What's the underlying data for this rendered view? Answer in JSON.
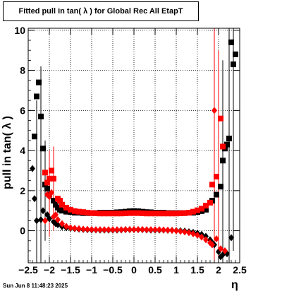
{
  "title": "Fitted pull in tan( λ ) for Global Rec All EtapT",
  "timestamp": "Sun Jun  8 11:48:23 2025",
  "chart_data": {
    "type": "scatter",
    "title": "Fitted pull in tan( λ ) for Global Rec All EtapT",
    "xlabel": "η",
    "ylabel": "pull in tan( λ )",
    "xlim": [
      -2.5,
      2.5
    ],
    "ylim": [
      -1.6,
      10.1
    ],
    "xticks": [
      -2.5,
      -2,
      -1.5,
      -1,
      -0.5,
      0,
      0.5,
      1,
      1.5,
      2,
      2.5
    ],
    "xtick_labels": [
      "−2.5",
      "−2",
      "−1.5",
      "−1",
      "−0.5",
      "0",
      "0.5",
      "1",
      "1.5",
      "2",
      "2.5"
    ],
    "yticks": [
      0,
      2,
      4,
      6,
      8,
      10
    ],
    "ytick_labels": [
      "0",
      "2",
      "4",
      "6",
      "8",
      "10"
    ],
    "grid": true,
    "series": [
      {
        "color": "#000000",
        "marker": "square",
        "points": [
          [
            -2.35,
            4.7
          ],
          [
            -2.3,
            6.7
          ],
          [
            -2.25,
            7.4
          ],
          [
            -2.2,
            5.7
          ],
          [
            -2.15,
            4.1
          ],
          [
            -2.1,
            2.3
          ],
          [
            -2.05,
            2.1
          ],
          [
            -2.0,
            1.8
          ],
          [
            -1.9,
            1.5
          ],
          [
            -1.85,
            1.3
          ],
          [
            -1.8,
            1.15
          ],
          [
            -1.75,
            1.05
          ],
          [
            -1.7,
            1.0
          ],
          [
            -1.6,
            0.95
          ],
          [
            -1.5,
            0.93
          ],
          [
            -1.4,
            0.9
          ],
          [
            -1.3,
            0.9
          ],
          [
            -1.2,
            0.88
          ],
          [
            -1.1,
            0.88
          ],
          [
            -1.0,
            0.88
          ],
          [
            -0.9,
            0.88
          ],
          [
            -0.8,
            0.9
          ],
          [
            -0.7,
            0.9
          ],
          [
            -0.6,
            0.9
          ],
          [
            -0.5,
            0.9
          ],
          [
            -0.4,
            0.92
          ],
          [
            -0.3,
            0.93
          ],
          [
            -0.2,
            0.95
          ],
          [
            -0.1,
            0.97
          ],
          [
            0.0,
            0.98
          ],
          [
            0.1,
            0.97
          ],
          [
            0.2,
            0.95
          ],
          [
            0.3,
            0.93
          ],
          [
            0.4,
            0.92
          ],
          [
            0.5,
            0.9
          ],
          [
            0.6,
            0.9
          ],
          [
            0.7,
            0.9
          ],
          [
            0.8,
            0.88
          ],
          [
            0.9,
            0.88
          ],
          [
            1.0,
            0.88
          ],
          [
            1.1,
            0.88
          ],
          [
            1.2,
            0.88
          ],
          [
            1.3,
            0.9
          ],
          [
            1.4,
            0.9
          ],
          [
            1.5,
            0.93
          ],
          [
            1.6,
            0.98
          ],
          [
            1.7,
            1.05
          ],
          [
            1.85,
            1.5
          ],
          [
            1.95,
            1.8
          ],
          [
            2.05,
            2.2
          ],
          [
            2.1,
            3.5
          ],
          [
            2.15,
            4.1
          ],
          [
            2.2,
            4.3
          ],
          [
            2.25,
            4.6
          ],
          [
            2.3,
            9.4
          ],
          [
            2.35,
            8.3
          ],
          [
            2.4,
            8.8
          ]
        ]
      },
      {
        "color": "#000000",
        "marker": "diamond",
        "points": [
          [
            -2.4,
            3.1
          ],
          [
            -2.35,
            1.6
          ],
          [
            -2.3,
            0.5
          ],
          [
            -2.2,
            0.55
          ],
          [
            -2.15,
            1.0
          ],
          [
            -2.05,
            0.8
          ],
          [
            -2.0,
            0.6
          ],
          [
            -1.9,
            0.45
          ],
          [
            -1.85,
            0.35
          ],
          [
            -1.8,
            0.3
          ],
          [
            -1.7,
            0.2
          ],
          [
            -1.6,
            0.15
          ],
          [
            -1.5,
            0.12
          ],
          [
            -1.4,
            0.1
          ],
          [
            -1.3,
            0.08
          ],
          [
            -1.2,
            0.06
          ],
          [
            -1.1,
            0.05
          ],
          [
            -1.0,
            0.04
          ],
          [
            -0.9,
            0.04
          ],
          [
            -0.8,
            0.03
          ],
          [
            -0.7,
            0.03
          ],
          [
            -0.6,
            0.03
          ],
          [
            -0.5,
            0.03
          ],
          [
            -0.4,
            0.03
          ],
          [
            -0.3,
            0.04
          ],
          [
            -0.2,
            0.05
          ],
          [
            -0.1,
            0.05
          ],
          [
            0.0,
            0.05
          ],
          [
            0.1,
            0.05
          ],
          [
            0.2,
            0.05
          ],
          [
            0.3,
            0.04
          ],
          [
            0.4,
            0.03
          ],
          [
            0.5,
            0.03
          ],
          [
            0.6,
            0.03
          ],
          [
            0.7,
            0.03
          ],
          [
            0.8,
            0.02
          ],
          [
            0.9,
            0.02
          ],
          [
            1.0,
            0.01
          ],
          [
            1.1,
            0.0
          ],
          [
            1.2,
            -0.02
          ],
          [
            1.3,
            -0.05
          ],
          [
            1.4,
            -0.08
          ],
          [
            1.5,
            -0.12
          ],
          [
            1.6,
            -0.18
          ],
          [
            1.7,
            -0.28
          ],
          [
            1.8,
            -0.45
          ],
          [
            1.85,
            -0.6
          ],
          [
            1.9,
            -0.7
          ],
          [
            2.0,
            -1.05
          ],
          [
            2.05,
            -1.3
          ],
          [
            2.1,
            -1.2
          ],
          [
            2.2,
            -1.15
          ],
          [
            2.3,
            -0.35
          ]
        ]
      },
      {
        "color": "#ff0000",
        "marker": "square",
        "points": [
          [
            -2.1,
            2.9
          ],
          [
            -2.05,
            2.4
          ],
          [
            -2.0,
            2.6
          ],
          [
            -1.95,
            3.0
          ],
          [
            -1.9,
            2.6
          ],
          [
            -1.8,
            1.6
          ],
          [
            -1.75,
            1.5
          ],
          [
            -1.7,
            1.3
          ],
          [
            -1.6,
            1.15
          ],
          [
            -1.5,
            1.05
          ],
          [
            -1.4,
            0.98
          ],
          [
            -1.3,
            0.95
          ],
          [
            -1.2,
            0.93
          ],
          [
            -1.1,
            0.9
          ],
          [
            -1.0,
            0.88
          ],
          [
            -0.9,
            0.87
          ],
          [
            -0.8,
            0.86
          ],
          [
            -0.7,
            0.86
          ],
          [
            -0.6,
            0.86
          ],
          [
            -0.5,
            0.86
          ],
          [
            -0.4,
            0.86
          ],
          [
            -0.3,
            0.86
          ],
          [
            -0.2,
            0.87
          ],
          [
            -0.1,
            0.88
          ],
          [
            0.0,
            0.88
          ],
          [
            0.1,
            0.88
          ],
          [
            0.2,
            0.87
          ],
          [
            0.3,
            0.86
          ],
          [
            0.4,
            0.86
          ],
          [
            0.5,
            0.86
          ],
          [
            0.6,
            0.86
          ],
          [
            0.7,
            0.86
          ],
          [
            0.8,
            0.86
          ],
          [
            0.9,
            0.86
          ],
          [
            1.0,
            0.86
          ],
          [
            1.1,
            0.87
          ],
          [
            1.2,
            0.88
          ],
          [
            1.3,
            0.9
          ],
          [
            1.4,
            0.95
          ],
          [
            1.5,
            1.02
          ],
          [
            1.6,
            1.1
          ],
          [
            1.7,
            1.25
          ],
          [
            1.8,
            1.4
          ],
          [
            1.85,
            2.3
          ],
          [
            1.95,
            2.7
          ],
          [
            2.05,
            5.6
          ],
          [
            2.1,
            4.2
          ]
        ]
      },
      {
        "color": "#ff0000",
        "marker": "diamond",
        "points": [
          [
            -2.1,
            0.5
          ],
          [
            -2.05,
            1.8
          ],
          [
            -2.0,
            1.7
          ],
          [
            -1.95,
            1.9
          ],
          [
            -1.9,
            0.7
          ],
          [
            -1.85,
            0.8
          ],
          [
            -1.8,
            0.55
          ],
          [
            -1.7,
            0.35
          ],
          [
            -1.6,
            0.22
          ],
          [
            -1.5,
            0.15
          ],
          [
            -1.4,
            0.12
          ],
          [
            -1.3,
            0.1
          ],
          [
            -1.2,
            0.08
          ],
          [
            -1.1,
            0.07
          ],
          [
            -1.0,
            0.06
          ],
          [
            -0.9,
            0.05
          ],
          [
            -0.8,
            0.05
          ],
          [
            -0.7,
            0.05
          ],
          [
            -0.6,
            0.05
          ],
          [
            -0.5,
            0.05
          ],
          [
            -0.4,
            0.05
          ],
          [
            -0.3,
            0.05
          ],
          [
            -0.2,
            0.06
          ],
          [
            -0.1,
            0.06
          ],
          [
            0.0,
            0.06
          ],
          [
            0.1,
            0.06
          ],
          [
            0.2,
            0.06
          ],
          [
            0.3,
            0.05
          ],
          [
            0.4,
            0.05
          ],
          [
            0.5,
            0.05
          ],
          [
            0.6,
            0.05
          ],
          [
            0.7,
            0.04
          ],
          [
            0.8,
            0.03
          ],
          [
            0.9,
            0.02
          ],
          [
            1.0,
            0.0
          ],
          [
            1.1,
            -0.03
          ],
          [
            1.2,
            -0.06
          ],
          [
            1.3,
            -0.1
          ],
          [
            1.4,
            -0.15
          ],
          [
            1.5,
            -0.22
          ],
          [
            1.6,
            -0.32
          ],
          [
            1.7,
            -0.45
          ],
          [
            1.8,
            -0.6
          ],
          [
            1.85,
            -0.7
          ],
          [
            1.9,
            6.0
          ],
          [
            1.95,
            -0.4
          ],
          [
            2.05,
            -0.9
          ],
          [
            2.15,
            -1.0
          ]
        ]
      }
    ],
    "error_bars": [
      {
        "color": "#000000",
        "x": -2.3,
        "lo": -1.6,
        "hi": 6.5
      },
      {
        "color": "#000000",
        "x": -2.2,
        "lo": -1.6,
        "hi": 8.2
      },
      {
        "color": "#000000",
        "x": -2.1,
        "lo": -0.5,
        "hi": 4.5
      },
      {
        "color": "#000000",
        "x": 2.1,
        "lo": -1.6,
        "hi": 8.5
      },
      {
        "color": "#000000",
        "x": 2.25,
        "lo": -1.6,
        "hi": 10.1
      },
      {
        "color": "#000000",
        "x": 2.35,
        "lo": -1.0,
        "hi": 10.1
      },
      {
        "color": "#ff0000",
        "x": -2.0,
        "lo": -0.3,
        "hi": 4.0
      },
      {
        "color": "#ff0000",
        "x": -1.9,
        "lo": 0.0,
        "hi": 4.2
      },
      {
        "color": "#ff0000",
        "x": 1.9,
        "lo": -1.6,
        "hi": 10.1
      },
      {
        "color": "#ff0000",
        "x": 2.0,
        "lo": -1.6,
        "hi": 9.0
      }
    ]
  }
}
